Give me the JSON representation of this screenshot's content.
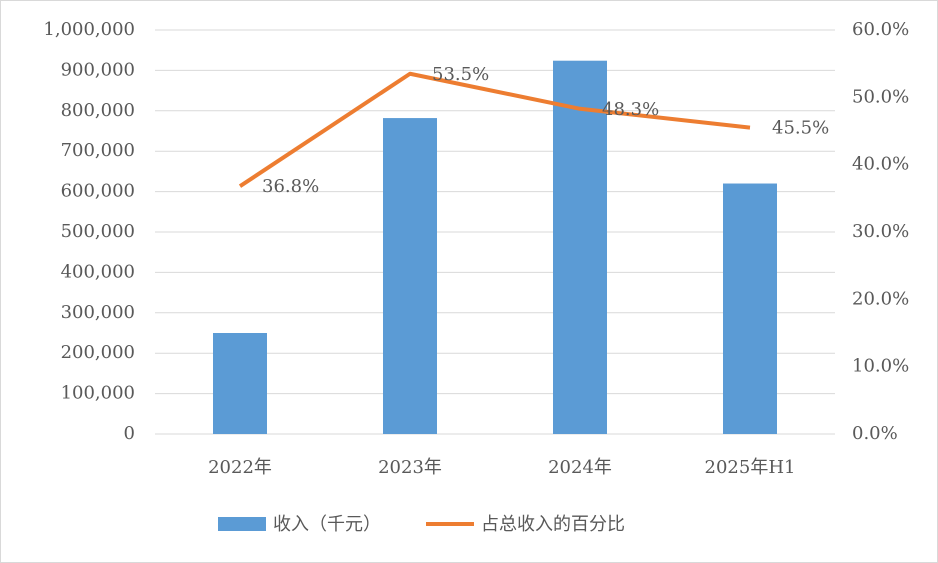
{
  "chart_data": {
    "type": "bar_line",
    "categories": [
      "2022年",
      "2023年",
      "2024年",
      "2025年H1"
    ],
    "series": [
      {
        "name": "收入（千元）",
        "type": "bar",
        "color": "#5b9bd5",
        "values": [
          250000,
          782000,
          924000,
          620000
        ]
      },
      {
        "name": "占总收入的百分比",
        "type": "line",
        "axis": "y2",
        "color": "#ed7d31",
        "values": [
          36.8,
          53.5,
          48.3,
          45.5
        ],
        "value_labels": [
          "36.8%",
          "53.5%",
          "48.3%",
          "45.5%"
        ]
      }
    ],
    "ylim": [
      0,
      1000000
    ],
    "yticks": [
      0,
      {
        "value": 100000,
        "label": "100,000"
      },
      {
        "value": 200000,
        "label": "200,000"
      },
      {
        "value": 300000,
        "label": "300,000"
      },
      {
        "value": 400000,
        "label": "400,000"
      },
      {
        "value": 500000,
        "label": "500,000"
      },
      {
        "value": 600000,
        "label": "600,000"
      },
      {
        "value": 700000,
        "label": "700,000"
      },
      {
        "value": 800000,
        "label": "800,000"
      },
      {
        "value": 900000,
        "label": "900,000"
      },
      {
        "value": 1000000,
        "label": "1,000,000"
      }
    ],
    "y2lim": [
      0,
      60
    ],
    "y2ticks": [
      {
        "value": 0,
        "label": "0.0%"
      },
      {
        "value": 10,
        "label": "10.0%"
      },
      {
        "value": 20,
        "label": "20.0%"
      },
      {
        "value": 30,
        "label": "30.0%"
      },
      {
        "value": 40,
        "label": "40.0%"
      },
      {
        "value": 50,
        "label": "50.0%"
      },
      {
        "value": 60,
        "label": "60.0%"
      }
    ],
    "grid": true,
    "legend": "bottom"
  }
}
